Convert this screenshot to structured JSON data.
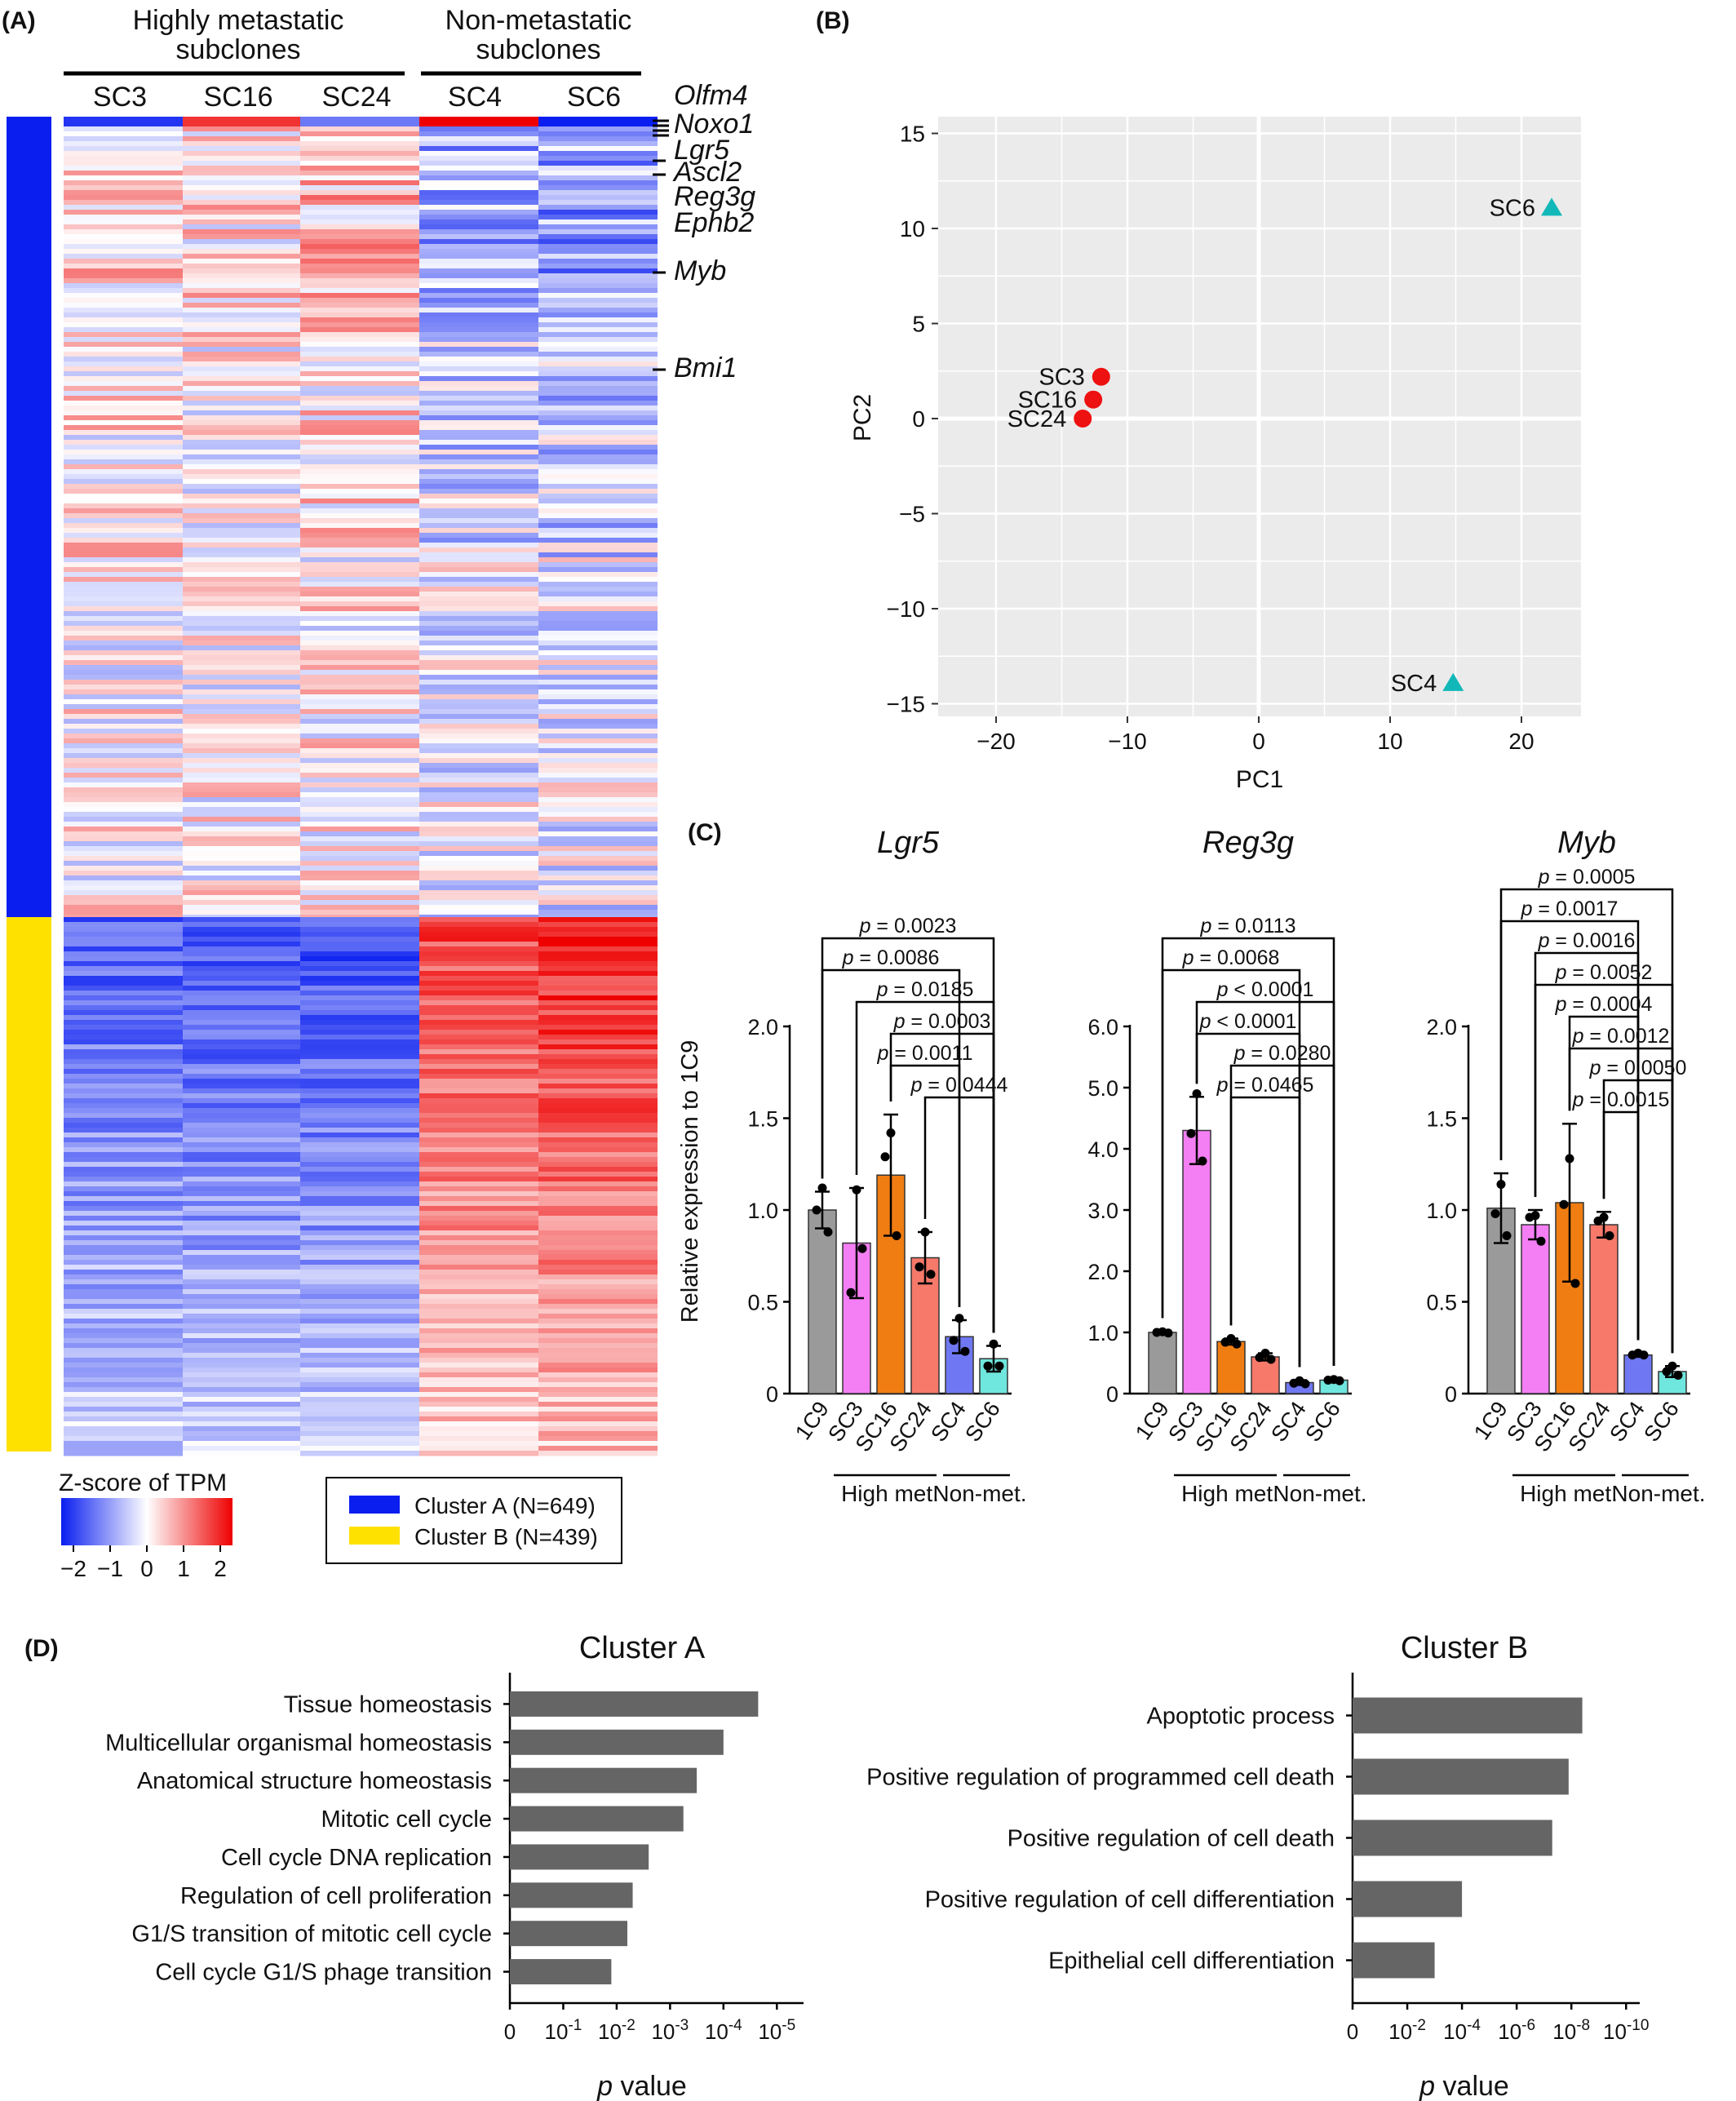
{
  "panels": {
    "a": "(A)",
    "b": "(B)",
    "c": "(C)",
    "d": "(D)"
  },
  "heatmap": {
    "group_high": [
      "Highly metastatic",
      "subclones"
    ],
    "group_non": [
      "Non-metastatic",
      "subclones"
    ],
    "columns": [
      "SC3",
      "SC16",
      "SC24",
      "SC4",
      "SC6"
    ],
    "genes": [
      "Olfm4",
      "Noxo1",
      "Lgr5",
      "Ascl2",
      "Reg3g",
      "Ephb2",
      "Myb",
      "Bmi1"
    ],
    "colorbar_title": "Z-score of TPM",
    "colorbar_ticks": [
      "−2",
      "−1",
      "0",
      "1",
      "2"
    ],
    "clusters": [
      {
        "label": "Cluster A (N=649)",
        "color": "#0a1ef0"
      },
      {
        "label": "Cluster B (N=439)",
        "color": "#ffe100"
      }
    ]
  },
  "colors": {
    "high": "#ee0000",
    "low": "#0a1ef0",
    "mid": "#ffffff",
    "bar_d": "#656565",
    "pca_high": "#ee1111",
    "pca_non": "#12b8b8"
  },
  "chart_data": [
    {
      "id": "pca",
      "type": "scatter",
      "xlabel": "PC1",
      "ylabel": "PC2",
      "xlim": [
        -25,
        25
      ],
      "ylim": [
        -16,
        16
      ],
      "xticks": [
        "−20",
        "−10",
        "0",
        "10",
        "20"
      ],
      "yticks": [
        "15",
        "10",
        "5",
        "0",
        "−5",
        "−10",
        "−15"
      ],
      "grid": true,
      "points": [
        {
          "label": "SC3",
          "x": -12.0,
          "y": 2.2,
          "group": "high"
        },
        {
          "label": "SC16",
          "x": -12.6,
          "y": 1.0,
          "group": "high"
        },
        {
          "label": "SC24",
          "x": -13.4,
          "y": 0.0,
          "group": "high"
        },
        {
          "label": "SC4",
          "x": 14.8,
          "y": -13.9,
          "group": "non"
        },
        {
          "label": "SC6",
          "x": 22.3,
          "y": 11.1,
          "group": "non"
        }
      ]
    },
    {
      "id": "lgr5",
      "type": "bar",
      "title": "Lgr5",
      "ylabel": "Relative expression to 1C9",
      "categories": [
        "1C9",
        "SC3",
        "SC16",
        "SC24",
        "SC4",
        "SC6"
      ],
      "values": [
        1.0,
        0.82,
        1.19,
        0.74,
        0.31,
        0.19
      ],
      "sd": [
        0.1,
        0.3,
        0.33,
        0.14,
        0.09,
        0.07
      ],
      "dots": [
        [
          1.12,
          1.0,
          0.88
        ],
        [
          1.11,
          0.55,
          0.79
        ],
        [
          1.42,
          1.29,
          0.86
        ],
        [
          0.88,
          0.69,
          0.65
        ],
        [
          0.41,
          0.29,
          0.23
        ],
        [
          0.27,
          0.15,
          0.15
        ]
      ],
      "ylim": [
        0,
        2.0
      ],
      "yticks": [
        "0",
        "0.5",
        "1.0",
        "1.5",
        "2.0"
      ],
      "group_labels": [
        "High met.",
        "Non-met."
      ],
      "comparisons": [
        {
          "p": "p = 0.0023",
          "from": 0,
          "to": 5
        },
        {
          "p": "p = 0.0086",
          "from": 0,
          "to": 4
        },
        {
          "p": "p = 0.0185",
          "from": 1,
          "to": 5
        },
        {
          "p": "p = 0.0003",
          "from": 2,
          "to": 5
        },
        {
          "p": "p = 0.0011",
          "from": 2,
          "to": 4
        },
        {
          "p": "p = 0.0444",
          "from": 3,
          "to": 5
        }
      ]
    },
    {
      "id": "reg3g",
      "type": "bar",
      "title": "Reg3g",
      "categories": [
        "1C9",
        "SC3",
        "SC16",
        "SC24",
        "SC4",
        "SC6"
      ],
      "values": [
        1.0,
        4.3,
        0.85,
        0.6,
        0.18,
        0.22
      ],
      "sd": [
        0.02,
        0.55,
        0.05,
        0.06,
        0.04,
        0.02
      ],
      "dots": [
        [
          1.01,
          1.0,
          0.99
        ],
        [
          4.9,
          4.25,
          3.8
        ],
        [
          0.9,
          0.84,
          0.81
        ],
        [
          0.66,
          0.59,
          0.56
        ],
        [
          0.21,
          0.17,
          0.16
        ],
        [
          0.23,
          0.22,
          0.21
        ]
      ],
      "ylim": [
        0,
        6.0
      ],
      "yticks": [
        "0",
        "1.0",
        "2.0",
        "3.0",
        "4.0",
        "5.0",
        "6.0"
      ],
      "group_labels": [
        "High met.",
        "Non-met."
      ],
      "comparisons": [
        {
          "p": "p = 0.0113",
          "from": 0,
          "to": 5
        },
        {
          "p": "p = 0.0068",
          "from": 0,
          "to": 4
        },
        {
          "p": "p < 0.0001",
          "from": 1,
          "to": 5
        },
        {
          "p": "p < 0.0001",
          "from": 1,
          "to": 4
        },
        {
          "p": "p = 0.0280",
          "from": 2,
          "to": 5
        },
        {
          "p": "p = 0.0465",
          "from": 2,
          "to": 4
        }
      ]
    },
    {
      "id": "myb",
      "type": "bar",
      "title": "Myb",
      "categories": [
        "1C9",
        "SC3",
        "SC16",
        "SC24",
        "SC4",
        "SC6"
      ],
      "values": [
        1.01,
        0.92,
        1.04,
        0.92,
        0.21,
        0.12
      ],
      "sd": [
        0.19,
        0.08,
        0.43,
        0.07,
        0.01,
        0.03
      ],
      "dots": [
        [
          1.14,
          0.98,
          0.86
        ],
        [
          0.97,
          0.96,
          0.83
        ],
        [
          1.28,
          1.03,
          0.6
        ],
        [
          0.96,
          0.94,
          0.86
        ],
        [
          0.22,
          0.21,
          0.21
        ],
        [
          0.15,
          0.12,
          0.1
        ]
      ],
      "ylim": [
        0,
        2.0
      ],
      "yticks": [
        "0",
        "0.5",
        "1.0",
        "1.5",
        "2.0"
      ],
      "group_labels": [
        "High met.",
        "Non-met."
      ],
      "comparisons": [
        {
          "p": "p = 0.0005",
          "from": 0,
          "to": 5
        },
        {
          "p": "p = 0.0017",
          "from": 0,
          "to": 4
        },
        {
          "p": "p = 0.0016",
          "from": 1,
          "to": 4
        },
        {
          "p": "p = 0.0052",
          "from": 1,
          "to": 5
        },
        {
          "p": "p = 0.0004",
          "from": 2,
          "to": 4
        },
        {
          "p": "p = 0.0012",
          "from": 2,
          "to": 5
        },
        {
          "p": "p = 0.0050",
          "from": 3,
          "to": 5
        },
        {
          "p": "p = 0.0015",
          "from": 3,
          "to": 4
        }
      ]
    },
    {
      "id": "go_a",
      "type": "bar",
      "orientation": "horizontal",
      "title": "Cluster A",
      "xlabel": "p value",
      "xticks": [
        "0",
        "10-1",
        "10-2",
        "10-3",
        "10-4",
        "10-5"
      ],
      "xlim_log10": [
        0,
        5.5
      ],
      "categories": [
        "Tissue homeostasis",
        "Multicellular organismal homeostasis",
        "Anatomical structure homeostasis",
        "Mitotic cell cycle",
        "Cell cycle DNA replication",
        "Regulation of cell proliferation",
        "G1/S transition of mitotic cell cycle",
        "Cell cycle G1/S phage transition"
      ],
      "values_log10": [
        4.65,
        4.0,
        3.5,
        3.25,
        2.6,
        2.3,
        2.2,
        1.9
      ]
    },
    {
      "id": "go_b",
      "type": "bar",
      "orientation": "horizontal",
      "title": "Cluster B",
      "xlabel": "p value",
      "xticks": [
        "0",
        "10-2",
        "10-4",
        "10-6",
        "10-8",
        "10-10"
      ],
      "xlim_log10": [
        0,
        10.5
      ],
      "categories": [
        "Apoptotic process",
        "Positive regulation of programmed cell death",
        "Positive regulation of cell death",
        "Positive regulation of cell differentiation",
        "Epithelial cell differentiation"
      ],
      "values_log10": [
        8.4,
        7.9,
        7.3,
        4.0,
        3.0
      ]
    }
  ]
}
